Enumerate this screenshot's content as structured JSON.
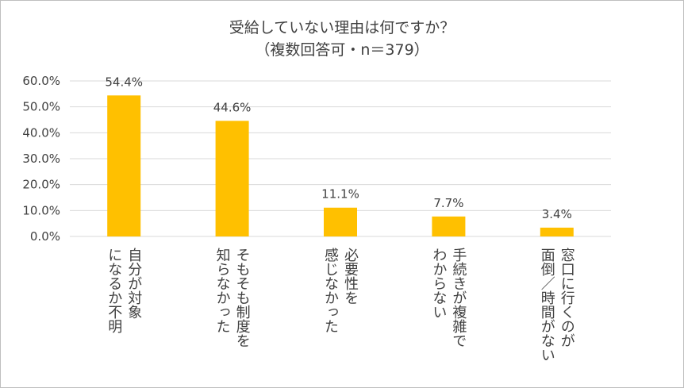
{
  "chart_data": {
    "type": "bar",
    "title": "受給していない理由は何ですか？",
    "subtitle": "（複数回答可・n＝379）",
    "categories": [
      "自分が対象\nになるか不明",
      "そもそも制度を\n知らなかった",
      "必要性を\n感じなかった",
      "手続きが複雑で\nわからない",
      "窓口に行くのが\n面倒／時間がない"
    ],
    "values": [
      54.4,
      44.6,
      11.1,
      7.7,
      3.4
    ],
    "data_labels": [
      "54.4%",
      "44.6%",
      "11.1%",
      "7.7%",
      "3.4%"
    ],
    "y_ticks": [
      "0.0%",
      "10.0%",
      "20.0%",
      "30.0%",
      "40.0%",
      "50.0%",
      "60.0%"
    ],
    "ylim": [
      0,
      60
    ],
    "grid": true,
    "bar_color": "#FFC000",
    "grid_color": "#d9d9d9"
  }
}
